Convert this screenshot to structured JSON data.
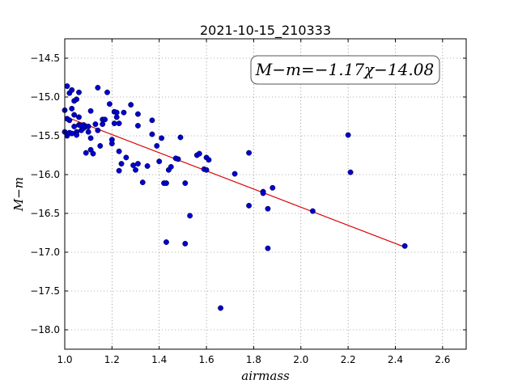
{
  "chart_data": {
    "type": "scatter",
    "title": "2021-10-15_210333",
    "xlabel": "airmass",
    "ylabel": "M−m",
    "xlim": [
      1.0,
      2.7
    ],
    "ylim": [
      -18.25,
      -14.25
    ],
    "x_ticks": [
      1.0,
      1.2,
      1.4,
      1.6,
      1.8,
      2.0,
      2.2,
      2.4,
      2.6
    ],
    "x_tick_labels": [
      "1.0",
      "1.2",
      "1.4",
      "1.6",
      "1.8",
      "2.0",
      "2.2",
      "2.4",
      "2.6"
    ],
    "y_ticks": [
      -14.5,
      -15.0,
      -15.5,
      -16.0,
      -16.5,
      -17.0,
      -17.5,
      -18.0
    ],
    "y_tick_labels": [
      "−14.5",
      "−15.0",
      "−15.5",
      "−16.0",
      "−16.5",
      "−17.0",
      "−17.5",
      "−18.0"
    ],
    "grid": true,
    "annotation": "M−m=−1.17χ−14.08",
    "annotation_position": "top-right",
    "fit": {
      "slope": -1.17,
      "intercept": -14.08,
      "x_range": [
        1.0,
        2.44
      ],
      "color": "#dd0000"
    },
    "point_color": "#0000cc",
    "points": [
      [
        1.0,
        -15.17
      ],
      [
        1.0,
        -15.45
      ],
      [
        1.01,
        -15.28
      ],
      [
        1.01,
        -15.5
      ],
      [
        1.01,
        -14.86
      ],
      [
        1.02,
        -14.95
      ],
      [
        1.02,
        -15.3
      ],
      [
        1.02,
        -15.46
      ],
      [
        1.03,
        -15.15
      ],
      [
        1.03,
        -14.91
      ],
      [
        1.03,
        -15.47
      ],
      [
        1.04,
        -15.05
      ],
      [
        1.04,
        -15.23
      ],
      [
        1.04,
        -15.38
      ],
      [
        1.05,
        -15.45
      ],
      [
        1.05,
        -15.49
      ],
      [
        1.05,
        -15.03
      ],
      [
        1.06,
        -15.26
      ],
      [
        1.06,
        -14.94
      ],
      [
        1.06,
        -15.36
      ],
      [
        1.07,
        -15.43
      ],
      [
        1.07,
        -15.37
      ],
      [
        1.08,
        -15.4
      ],
      [
        1.08,
        -15.36
      ],
      [
        1.09,
        -15.72
      ],
      [
        1.09,
        -15.38
      ],
      [
        1.1,
        -15.45
      ],
      [
        1.1,
        -15.38
      ],
      [
        1.11,
        -15.18
      ],
      [
        1.11,
        -15.53
      ],
      [
        1.11,
        -15.68
      ],
      [
        1.12,
        -15.73
      ],
      [
        1.13,
        -15.35
      ],
      [
        1.14,
        -15.43
      ],
      [
        1.14,
        -14.88
      ],
      [
        1.15,
        -15.63
      ],
      [
        1.16,
        -15.35
      ],
      [
        1.16,
        -15.29
      ],
      [
        1.17,
        -15.29
      ],
      [
        1.18,
        -14.94
      ],
      [
        1.19,
        -15.09
      ],
      [
        1.2,
        -15.6
      ],
      [
        1.2,
        -15.55
      ],
      [
        1.21,
        -15.34
      ],
      [
        1.21,
        -15.19
      ],
      [
        1.22,
        -15.26
      ],
      [
        1.22,
        -15.2
      ],
      [
        1.23,
        -15.34
      ],
      [
        1.23,
        -15.7
      ],
      [
        1.23,
        -15.95
      ],
      [
        1.24,
        -15.86
      ],
      [
        1.25,
        -15.2
      ],
      [
        1.26,
        -15.78
      ],
      [
        1.28,
        -15.1
      ],
      [
        1.29,
        -15.88
      ],
      [
        1.3,
        -15.94
      ],
      [
        1.31,
        -15.86
      ],
      [
        1.31,
        -15.22
      ],
      [
        1.31,
        -15.37
      ],
      [
        1.33,
        -16.1
      ],
      [
        1.35,
        -15.89
      ],
      [
        1.37,
        -15.3
      ],
      [
        1.37,
        -15.48
      ],
      [
        1.39,
        -15.63
      ],
      [
        1.4,
        -15.83
      ],
      [
        1.41,
        -15.53
      ],
      [
        1.42,
        -16.11
      ],
      [
        1.43,
        -16.11
      ],
      [
        1.43,
        -16.87
      ],
      [
        1.44,
        -15.94
      ],
      [
        1.45,
        -15.9
      ],
      [
        1.47,
        -15.79
      ],
      [
        1.48,
        -15.8
      ],
      [
        1.49,
        -15.52
      ],
      [
        1.51,
        -16.11
      ],
      [
        1.51,
        -16.89
      ],
      [
        1.53,
        -16.53
      ],
      [
        1.56,
        -15.75
      ],
      [
        1.57,
        -15.73
      ],
      [
        1.59,
        -15.93
      ],
      [
        1.6,
        -15.94
      ],
      [
        1.6,
        -15.78
      ],
      [
        1.61,
        -15.81
      ],
      [
        1.66,
        -17.72
      ],
      [
        1.72,
        -15.99
      ],
      [
        1.78,
        -16.4
      ],
      [
        1.78,
        -15.72
      ],
      [
        1.84,
        -16.22
      ],
      [
        1.84,
        -16.24
      ],
      [
        1.86,
        -16.44
      ],
      [
        1.86,
        -16.95
      ],
      [
        1.88,
        -16.17
      ],
      [
        2.05,
        -16.47
      ],
      [
        2.2,
        -15.49
      ],
      [
        2.21,
        -15.97
      ],
      [
        2.44,
        -16.92
      ]
    ]
  }
}
